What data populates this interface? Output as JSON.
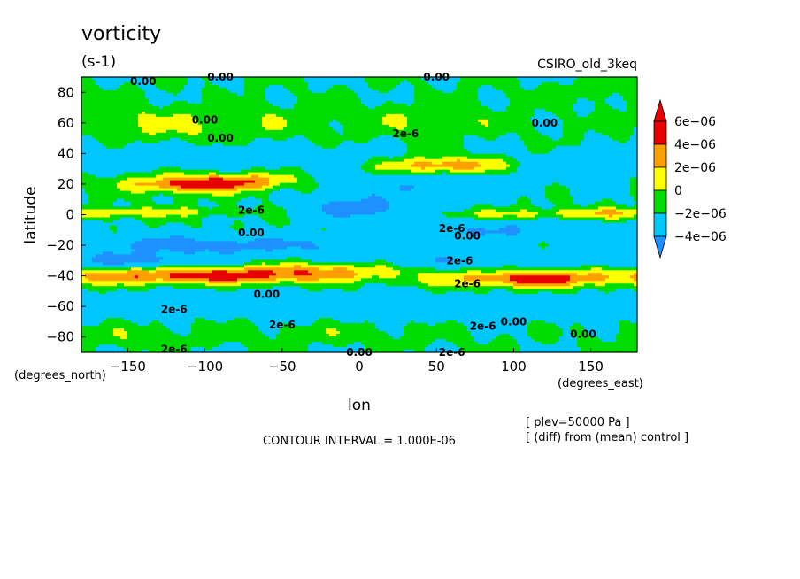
{
  "chart_data": {
    "type": "heatmap",
    "title": "vorticity",
    "units": "(s-1)",
    "model": "CSIRO_old_3keq",
    "xlabel": "lon",
    "ylabel": "latitude",
    "x_unit_label": "(degrees_east)",
    "y_unit_label": "(degrees_north)",
    "xlim": [
      -180,
      180
    ],
    "ylim": [
      -90,
      90
    ],
    "xticks": [
      -150,
      -100,
      -50,
      0,
      50,
      100,
      150
    ],
    "yticks": [
      -80,
      -60,
      -40,
      -20,
      0,
      20,
      40,
      60,
      80
    ],
    "xtick_labels": [
      "−150",
      "−100",
      "−50",
      "0",
      "50",
      "100",
      "150"
    ],
    "ytick_labels": [
      "−80",
      "−60",
      "−40",
      "−20",
      "0",
      "20",
      "40",
      "60",
      "80"
    ],
    "contour_interval": "CONTOUR INTERVAL = 1.000E-06",
    "notes": [
      "[ plev=50000 Pa ]",
      "[ (diff) from (mean) control ]"
    ],
    "colorbar": {
      "labels": [
        "6e−06",
        "4e−06",
        "2e−06",
        "0",
        "−2e−06",
        "−4e−06"
      ],
      "levels": [
        -6e-06,
        -4e-06,
        -2e-06,
        0,
        2e-06,
        4e-06,
        6e-06
      ],
      "colors": [
        "#1e90ff",
        "#00c8ff",
        "#00dc00",
        "#ffff00",
        "#ffa000",
        "#e60000"
      ]
    },
    "features": [
      {
        "lon": -145,
        "lat": 62,
        "v": 1.6e-06,
        "sx": 30,
        "sy": 7
      },
      {
        "lon": -110,
        "lat": 55,
        "v": 1.2e-06,
        "sx": 35,
        "sy": 6
      },
      {
        "lon": -60,
        "lat": 62,
        "v": 1.2e-06,
        "sx": 40,
        "sy": 7
      },
      {
        "lon": 40,
        "lat": 62,
        "v": 1.6e-06,
        "sx": 40,
        "sy": 7
      },
      {
        "lon": -130,
        "lat": 38,
        "v": -2.6e-06,
        "sx": 55,
        "sy": 5
      },
      {
        "lon": -40,
        "lat": 38,
        "v": -2.2e-06,
        "sx": 40,
        "sy": 5
      },
      {
        "lon": -110,
        "lat": 20,
        "v": 6.5e-06,
        "sx": 30,
        "sy": 4
      },
      {
        "lon": -70,
        "lat": 22,
        "v": 3.5e-06,
        "sx": 25,
        "sy": 4
      },
      {
        "lon": 60,
        "lat": 32,
        "v": 6.5e-06,
        "sx": 30,
        "sy": 4
      },
      {
        "lon": 40,
        "lat": 18,
        "v": -3.5e-06,
        "sx": 40,
        "sy": 6
      },
      {
        "lon": 120,
        "lat": 30,
        "v": -2.2e-06,
        "sx": 40,
        "sy": 6
      },
      {
        "lon": 0,
        "lat": 4,
        "v": -6e-06,
        "sx": 25,
        "sy": 5
      },
      {
        "lon": -150,
        "lat": 2,
        "v": 2.8e-06,
        "sx": 50,
        "sy": 2
      },
      {
        "lon": 130,
        "lat": 0,
        "v": 3e-06,
        "sx": 60,
        "sy": 2.5
      },
      {
        "lon": 90,
        "lat": -10,
        "v": -4e-06,
        "sx": 50,
        "sy": 5
      },
      {
        "lon": -120,
        "lat": -20,
        "v": -5e-06,
        "sx": 50,
        "sy": 5
      },
      {
        "lon": -30,
        "lat": -20,
        "v": -3e-06,
        "sx": 40,
        "sy": 5
      },
      {
        "lon": -150,
        "lat": -30,
        "v": -5e-06,
        "sx": 40,
        "sy": 3
      },
      {
        "lon": -100,
        "lat": -40,
        "v": 6.8e-06,
        "sx": 60,
        "sy": 4
      },
      {
        "lon": -20,
        "lat": -36,
        "v": 3.2e-06,
        "sx": 40,
        "sy": 4
      },
      {
        "lon": 110,
        "lat": -42,
        "v": 6.5e-06,
        "sx": 40,
        "sy": 4
      },
      {
        "lon": 60,
        "lat": -30,
        "v": -3.5e-06,
        "sx": 40,
        "sy": 4
      },
      {
        "lon": -80,
        "lat": -58,
        "v": -2.2e-06,
        "sx": 80,
        "sy": 6
      },
      {
        "lon": 80,
        "lat": -62,
        "v": -1.8e-06,
        "sx": 60,
        "sy": 6
      },
      {
        "lon": -150,
        "lat": -80,
        "v": 1.2e-06,
        "sx": 30,
        "sy": 5
      },
      {
        "lon": -20,
        "lat": -78,
        "v": 1e-06,
        "sx": 60,
        "sy": 5
      },
      {
        "lon": 150,
        "lat": 80,
        "v": 1e-06,
        "sx": 30,
        "sy": 5
      }
    ],
    "contour_labels": [
      {
        "lon": -140,
        "lat": 87,
        "text": "0.00"
      },
      {
        "lon": -90,
        "lat": 90,
        "text": "0.00"
      },
      {
        "lon": 50,
        "lat": 90,
        "text": "0.00"
      },
      {
        "lon": -100,
        "lat": 62,
        "text": "0.00"
      },
      {
        "lon": -90,
        "lat": 50,
        "text": "0.00"
      },
      {
        "lon": 30,
        "lat": 53,
        "text": "2e-6"
      },
      {
        "lon": 120,
        "lat": 60,
        "text": "0.00"
      },
      {
        "lon": -70,
        "lat": 3,
        "text": "2e-6"
      },
      {
        "lon": -70,
        "lat": -12,
        "text": "0.00"
      },
      {
        "lon": 60,
        "lat": -9,
        "text": "2e-6"
      },
      {
        "lon": 70,
        "lat": -14,
        "text": "0.00"
      },
      {
        "lon": 65,
        "lat": -30,
        "text": "2e-6"
      },
      {
        "lon": 70,
        "lat": -45,
        "text": "2e-6"
      },
      {
        "lon": -60,
        "lat": -52,
        "text": "0.00"
      },
      {
        "lon": -120,
        "lat": -62,
        "text": "2e-6"
      },
      {
        "lon": -50,
        "lat": -72,
        "text": "2e-6"
      },
      {
        "lon": 80,
        "lat": -73,
        "text": "2e-6"
      },
      {
        "lon": 100,
        "lat": -70,
        "text": "0.00"
      },
      {
        "lon": 145,
        "lat": -78,
        "text": "0.00"
      },
      {
        "lon": -120,
        "lat": -88,
        "text": "2e-6"
      },
      {
        "lon": 0,
        "lat": -90,
        "text": "0.00"
      },
      {
        "lon": 60,
        "lat": -90,
        "text": "2e-6"
      }
    ]
  }
}
